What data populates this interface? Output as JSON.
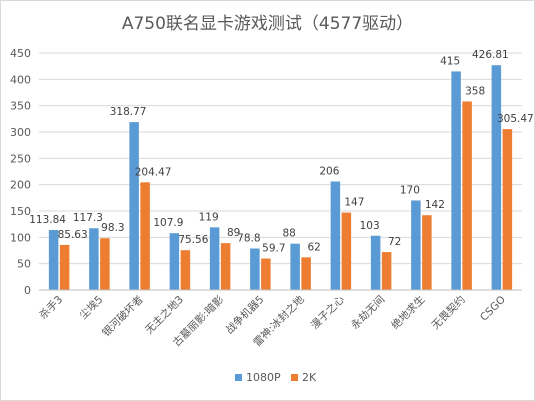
{
  "chart_data": {
    "type": "bar",
    "title": "A750联名显卡游戏测试（4577驱动）",
    "categories": [
      "杀手3",
      "尘埃5",
      "银河破坏者",
      "无主之地3",
      "古墓丽影:暗影",
      "战争机器5",
      "雷神:冰封之地",
      "漫子之心",
      "永劫无间",
      "绝地求生",
      "无畏契约",
      "CSGO"
    ],
    "series": [
      {
        "name": "1080P",
        "values": [
          113.84,
          117.3,
          318.77,
          107.9,
          119,
          78.8,
          88,
          206,
          103,
          170,
          415,
          426.81
        ],
        "labels": [
          "113.84",
          "117.3",
          "318.77",
          "107.9",
          "119",
          "78.8",
          "88",
          "206",
          "103",
          "170",
          "415",
          "426.81"
        ]
      },
      {
        "name": "2K",
        "values": [
          85.63,
          98.3,
          204.47,
          75.56,
          89,
          59.7,
          62,
          147,
          72,
          142,
          358,
          305.47
        ],
        "labels": [
          "85.63",
          "98.3",
          "204.47",
          "75.56",
          "89",
          "59.7",
          "62",
          "147",
          "72",
          "142",
          "358",
          "305.47"
        ]
      }
    ],
    "yticks": [
      "0",
      "50",
      "100",
      "150",
      "200",
      "250",
      "300",
      "350",
      "400",
      "450"
    ],
    "ylim": [
      0,
      450
    ],
    "grid": true,
    "legend": "bottom",
    "colors": [
      "#5b9bd5",
      "#ed7d31"
    ]
  }
}
